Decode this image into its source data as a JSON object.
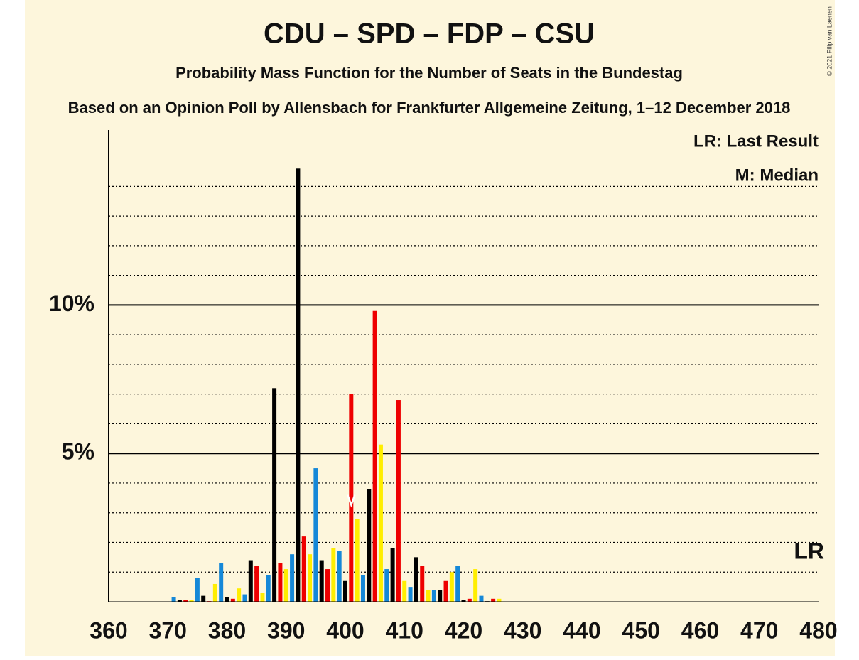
{
  "chart_data": {
    "type": "bar",
    "title": "CDU – SPD – FDP – CSU",
    "subtitle": "Probability Mass Function for the Number of Seats in the Bundestag",
    "subtitle2": "Based on an Opinion Poll by Allensbach for Frankfurter Allgemeine Zeitung, 1–12 December 2018",
    "copyright": "© 2021 Filip van Laenen",
    "legend": [
      "LR: Last Result",
      "M: Median"
    ],
    "last_result_label": "LR",
    "median_seat": 401,
    "palette": [
      "#000000",
      "#ee0000",
      "#ffee00",
      "#1588d8"
    ],
    "x": [
      360,
      361,
      362,
      363,
      364,
      365,
      366,
      367,
      368,
      369,
      370,
      371,
      372,
      373,
      374,
      375,
      376,
      377,
      378,
      379,
      380,
      381,
      382,
      383,
      384,
      385,
      386,
      387,
      388,
      389,
      390,
      391,
      392,
      393,
      394,
      395,
      396,
      397,
      398,
      399,
      400,
      401,
      402,
      403,
      404,
      405,
      406,
      407,
      408,
      409,
      410,
      411,
      412,
      413,
      414,
      415,
      416,
      417,
      418,
      419,
      420,
      421,
      422,
      423,
      424,
      425,
      426,
      427,
      428,
      429,
      430,
      431,
      432,
      433,
      434,
      435,
      436,
      437,
      438,
      439,
      440,
      441,
      442,
      443,
      444,
      445,
      446,
      447,
      448,
      449,
      450,
      451,
      452,
      453,
      454,
      455,
      456,
      457,
      458,
      459,
      460,
      461,
      462,
      463,
      464,
      465,
      466,
      467,
      468,
      469,
      470,
      471,
      472,
      473,
      474,
      475,
      476,
      477,
      478,
      479,
      480
    ],
    "values": [
      0,
      0,
      0,
      0,
      0,
      0,
      0,
      0,
      0,
      0,
      0,
      0.15,
      0.05,
      0.05,
      0.05,
      0.8,
      0.2,
      0.02,
      0.6,
      1.3,
      0.15,
      0.1,
      0.45,
      0.25,
      1.4,
      1.2,
      0.3,
      0.9,
      7.2,
      1.3,
      1.1,
      1.6,
      14.6,
      2.2,
      1.6,
      4.5,
      1.4,
      1.1,
      1.8,
      1.7,
      0.7,
      7.0,
      2.8,
      0.9,
      3.8,
      9.8,
      5.3,
      1.1,
      1.8,
      6.8,
      0.7,
      0.5,
      1.5,
      1.2,
      0.4,
      0.4,
      0.4,
      0.7,
      1.0,
      1.2,
      0.05,
      0.1,
      1.1,
      0.2,
      0.02,
      0.1,
      0.1,
      0,
      0,
      0,
      0,
      0,
      0,
      0,
      0,
      0,
      0,
      0,
      0,
      0,
      0,
      0,
      0,
      0,
      0,
      0,
      0,
      0,
      0,
      0,
      0,
      0,
      0,
      0,
      0,
      0,
      0,
      0,
      0,
      0,
      0,
      0,
      0,
      0,
      0,
      0,
      0,
      0,
      0,
      0,
      0,
      0,
      0,
      0,
      0,
      0,
      0,
      0,
      0,
      0,
      0
    ],
    "xlim": [
      360,
      480
    ],
    "xticks": [
      360,
      370,
      380,
      390,
      400,
      410,
      420,
      430,
      440,
      450,
      460,
      470,
      480
    ],
    "ylim": [
      0,
      15.9
    ],
    "yticks": [
      {
        "value": 5,
        "label": "5%"
      },
      {
        "value": 10,
        "label": "10%"
      }
    ],
    "minor_gridlines": [
      1,
      2,
      3,
      4,
      6,
      7,
      8,
      9,
      11,
      12,
      13,
      14
    ]
  }
}
